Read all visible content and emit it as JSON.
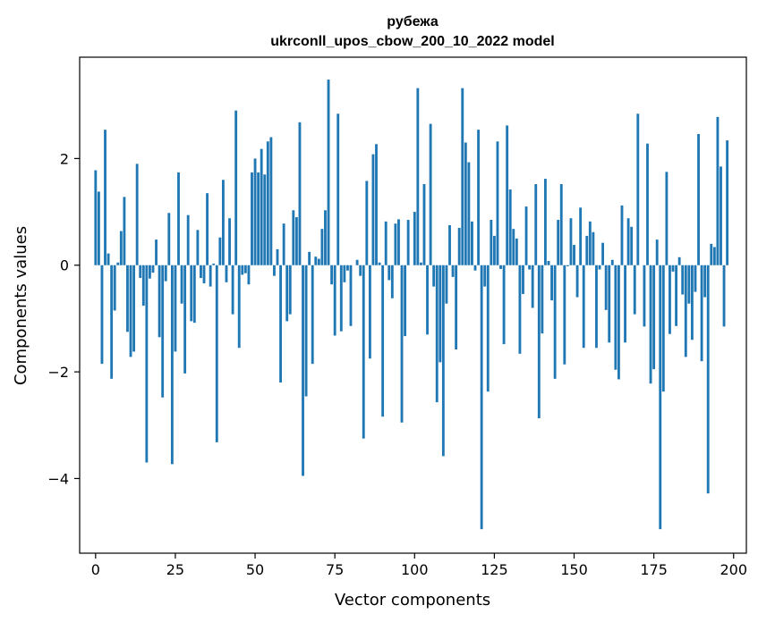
{
  "chart_data": {
    "type": "bar",
    "title_line1": "рубежа",
    "title_line2": "ukrconll_upos_cbow_200_10_2022 model",
    "xlabel": "Vector components",
    "ylabel": "Components values",
    "xlim": [
      -5,
      204
    ],
    "ylim": [
      -5.4,
      3.9
    ],
    "xticks": [
      0,
      25,
      50,
      75,
      100,
      125,
      150,
      175,
      200
    ],
    "xtick_labels": [
      "0",
      "25",
      "50",
      "75",
      "100",
      "125",
      "150",
      "175",
      "200"
    ],
    "yticks": [
      2,
      0,
      -2,
      -4
    ],
    "ytick_labels": [
      "2",
      "0",
      "−2",
      "−4"
    ],
    "bar_color": "#1f77b4",
    "grid": false,
    "values": [
      1.78,
      1.38,
      -1.85,
      2.54,
      0.22,
      -2.13,
      -0.85,
      0.05,
      0.64,
      1.28,
      -1.25,
      -1.72,
      -1.62,
      1.9,
      -0.24,
      -0.76,
      -3.7,
      -0.25,
      -0.14,
      0.48,
      -1.35,
      -2.48,
      -0.3,
      0.98,
      -3.73,
      -1.62,
      1.74,
      -0.72,
      -2.03,
      0.94,
      -1.05,
      -1.08,
      0.66,
      -0.24,
      -0.34,
      1.35,
      -0.4,
      0.03,
      -3.32,
      0.52,
      1.6,
      -0.32,
      0.88,
      -0.92,
      2.9,
      -1.55,
      -0.18,
      -0.15,
      -0.36,
      1.74,
      2.0,
      1.74,
      2.18,
      1.7,
      2.32,
      2.4,
      -0.2,
      0.3,
      -2.2,
      0.78,
      -1.05,
      -0.92,
      1.03,
      0.9,
      2.68,
      -3.95,
      -2.46,
      0.25,
      -1.85,
      0.16,
      0.12,
      0.68,
      1.03,
      3.48,
      -0.36,
      -1.32,
      2.84,
      -1.24,
      -0.32,
      -0.1,
      -1.14,
      0.0,
      0.1,
      -0.2,
      -3.25,
      1.58,
      -1.75,
      2.08,
      2.27,
      0.05,
      -2.84,
      0.82,
      -0.28,
      -0.62,
      0.78,
      0.86,
      -2.95,
      -1.33,
      0.85,
      0.0,
      1.0,
      3.32,
      0.05,
      1.52,
      -1.3,
      2.65,
      -0.4,
      -2.57,
      -1.82,
      -3.58,
      -0.72,
      0.75,
      -0.22,
      -1.58,
      0.7,
      3.32,
      2.3,
      1.93,
      0.82,
      -0.1,
      2.54,
      -4.95,
      -0.4,
      -2.37,
      0.85,
      0.55,
      2.32,
      -0.07,
      -1.48,
      2.62,
      1.42,
      0.68,
      0.5,
      -1.66,
      -0.54,
      1.1,
      -0.08,
      -0.8,
      1.52,
      -2.87,
      -1.28,
      1.62,
      0.08,
      -0.66,
      -2.13,
      0.85,
      1.52,
      -1.86,
      -0.02,
      0.88,
      0.38,
      -0.6,
      1.08,
      -1.55,
      0.55,
      0.82,
      0.62,
      -1.55,
      -0.08,
      0.42,
      -0.84,
      -1.45,
      0.1,
      -1.96,
      -2.14,
      1.12,
      -1.45,
      0.88,
      0.72,
      -0.92,
      2.84,
      0.0,
      -1.15,
      2.28,
      -2.22,
      -1.95,
      0.48,
      -4.95,
      -2.37,
      1.75,
      -1.29,
      -0.12,
      -1.14,
      0.15,
      -0.55,
      -1.72,
      -0.72,
      -1.4,
      -0.5,
      2.46,
      -1.8,
      -0.6,
      -4.28,
      0.4,
      0.34,
      2.78,
      1.85,
      -1.15,
      2.34,
      0.0
    ]
  }
}
